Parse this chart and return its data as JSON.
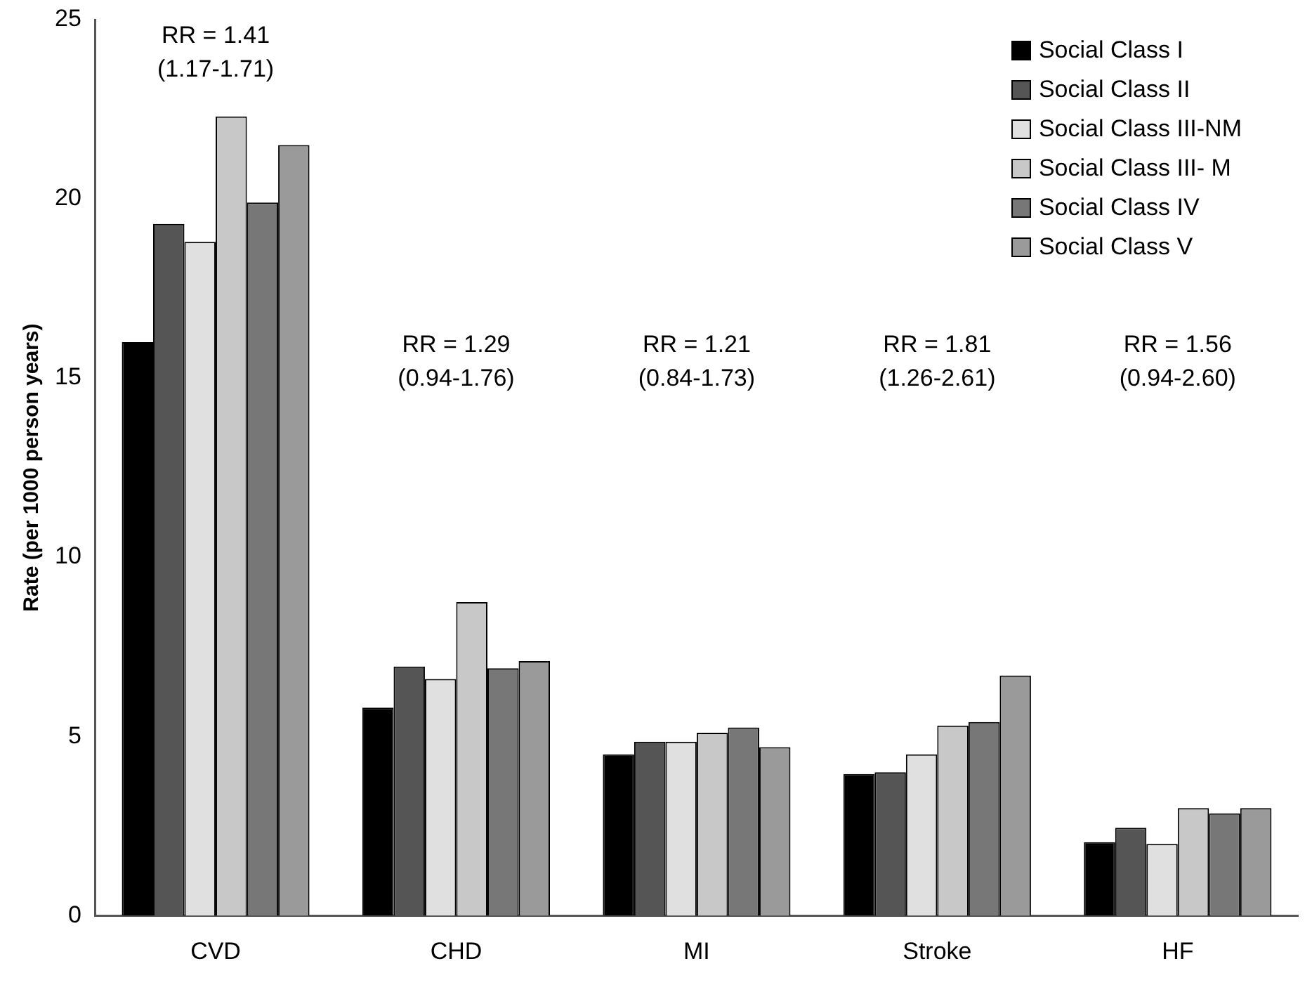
{
  "chart_data": {
    "type": "bar",
    "ylabel": "Rate (per 1000 person years)",
    "categories": [
      "CVD",
      "CHD",
      "MI",
      "Stroke",
      "HF"
    ],
    "series": [
      {
        "name": "Social Class I",
        "color": "#000000",
        "values": [
          16.0,
          5.8,
          4.5,
          3.95,
          2.05
        ]
      },
      {
        "name": "Social Class II",
        "color": "#555555",
        "values": [
          19.3,
          6.95,
          4.85,
          4.0,
          2.45
        ]
      },
      {
        "name": "Social Class III-NM",
        "color": "#e0e0e0",
        "values": [
          18.8,
          6.6,
          4.85,
          4.5,
          2.0
        ]
      },
      {
        "name": "Social Class III- M",
        "color": "#c8c8c8",
        "values": [
          22.3,
          8.75,
          5.1,
          5.3,
          3.0
        ]
      },
      {
        "name": "Social Class IV",
        "color": "#777777",
        "values": [
          19.9,
          6.9,
          5.25,
          5.4,
          2.85
        ]
      },
      {
        "name": "Social Class V",
        "color": "#9a9a9a",
        "values": [
          21.5,
          7.1,
          4.7,
          6.7,
          3.0
        ]
      }
    ],
    "ylim": [
      0,
      25
    ],
    "yticks": [
      0,
      5,
      10,
      15,
      20,
      25
    ],
    "grid": false,
    "legend": "top right",
    "annotations": [
      "RR = 1.41\n(1.17-1.71)",
      "RR = 1.29\n(0.94-1.76)",
      "RR = 1.21\n(0.84-1.73)",
      "RR = 1.81\n(1.26-2.61)",
      "RR = 1.56\n(0.94-2.60)"
    ]
  }
}
